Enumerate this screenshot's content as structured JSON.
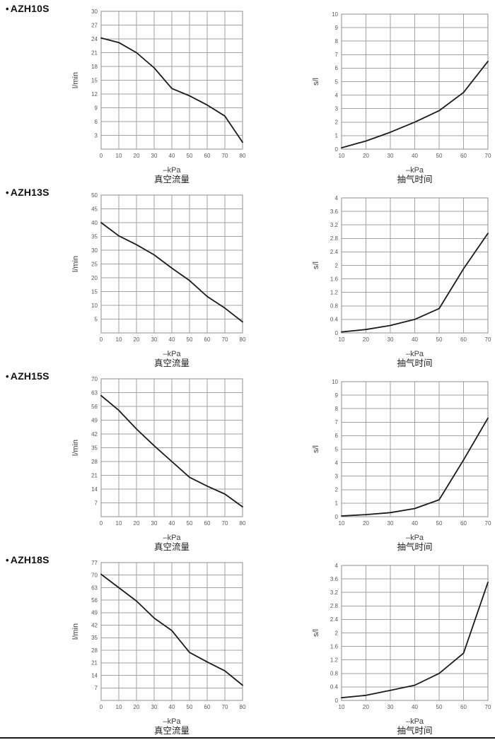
{
  "page": {
    "bullet": "•",
    "colors": {
      "grid": "#a3a3a3",
      "border": "#8f8f8f",
      "curve": "#1b1b1b",
      "tick_text": "#58595b",
      "unit_text": "#404040",
      "title_text": "#222222",
      "rule": "#151515"
    }
  },
  "chart_data": [
    {
      "id": "azh10s-flow",
      "product": "AZH10S",
      "panel": "flow",
      "type": "line",
      "title": "真空流量",
      "xlabel": "–kPa",
      "ylabel": "l/min",
      "xlim": [
        0,
        80
      ],
      "ylim": [
        0,
        30
      ],
      "grid": true,
      "legend": "none",
      "xticks": [
        0,
        10,
        20,
        30,
        40,
        50,
        60,
        70,
        80
      ],
      "yticks": [
        3,
        6,
        9,
        12,
        15,
        18,
        21,
        24,
        27,
        30
      ],
      "points": [
        [
          0,
          24.2
        ],
        [
          10,
          23.2
        ],
        [
          20,
          21
        ],
        [
          30,
          17.7
        ],
        [
          40,
          13.2
        ],
        [
          50,
          11.6
        ],
        [
          60,
          9.6
        ],
        [
          70,
          7.2
        ],
        [
          80,
          1.5
        ]
      ]
    },
    {
      "id": "azh10s-time",
      "product": "AZH10S",
      "panel": "time",
      "type": "line",
      "title": "抽气时间",
      "xlabel": "–kPa",
      "ylabel": "s/l",
      "xlim": [
        10,
        70
      ],
      "ylim": [
        0,
        10
      ],
      "grid": true,
      "legend": "none",
      "xticks": [
        10,
        20,
        30,
        40,
        50,
        60,
        70
      ],
      "yticks": [
        0,
        1,
        2,
        3,
        4,
        5,
        6,
        7,
        8,
        9,
        10
      ],
      "points": [
        [
          10,
          0.1
        ],
        [
          20,
          0.6
        ],
        [
          30,
          1.25
        ],
        [
          40,
          2.0
        ],
        [
          50,
          2.85
        ],
        [
          60,
          4.2
        ],
        [
          70,
          6.5
        ]
      ]
    },
    {
      "id": "azh13s-flow",
      "product": "AZH13S",
      "panel": "flow",
      "type": "line",
      "title": "真空流量",
      "xlabel": "–kPa",
      "ylabel": "l/min",
      "xlim": [
        0,
        80
      ],
      "ylim": [
        0,
        50
      ],
      "grid": true,
      "legend": "none",
      "xticks": [
        0,
        10,
        20,
        30,
        40,
        50,
        60,
        70,
        80
      ],
      "yticks": [
        5,
        10,
        15,
        20,
        25,
        30,
        35,
        40,
        45,
        50
      ],
      "points": [
        [
          0,
          40
        ],
        [
          10,
          35.2
        ],
        [
          20,
          32
        ],
        [
          30,
          28.3
        ],
        [
          40,
          23.5
        ],
        [
          50,
          19
        ],
        [
          60,
          13.2
        ],
        [
          70,
          9
        ],
        [
          80,
          4
        ]
      ]
    },
    {
      "id": "azh13s-time",
      "product": "AZH13S",
      "panel": "time",
      "type": "line",
      "title": "抽气时间",
      "xlabel": "–kPa",
      "ylabel": "s/l",
      "xlim": [
        10,
        70
      ],
      "ylim": [
        0,
        4
      ],
      "grid": true,
      "legend": "none",
      "xticks": [
        10,
        20,
        30,
        40,
        50,
        60,
        70
      ],
      "yticks": [
        0,
        0.4,
        0.8,
        1.2,
        1.6,
        2,
        2.4,
        2.8,
        3.2,
        3.6,
        4
      ],
      "points": [
        [
          10,
          0.03
        ],
        [
          20,
          0.1
        ],
        [
          30,
          0.22
        ],
        [
          40,
          0.4
        ],
        [
          50,
          0.72
        ],
        [
          60,
          1.9
        ],
        [
          70,
          2.95
        ]
      ]
    },
    {
      "id": "azh15s-flow",
      "product": "AZH15S",
      "panel": "flow",
      "type": "line",
      "title": "真空流量",
      "xlabel": "–kPa",
      "ylabel": "l/min",
      "xlim": [
        0,
        80
      ],
      "ylim": [
        0,
        70
      ],
      "grid": true,
      "legend": "none",
      "xticks": [
        0,
        10,
        20,
        30,
        40,
        50,
        60,
        70,
        80
      ],
      "yticks": [
        7,
        14,
        21,
        28,
        35,
        42,
        49,
        56,
        63,
        70
      ],
      "points": [
        [
          0,
          61.5
        ],
        [
          10,
          54
        ],
        [
          20,
          44.5
        ],
        [
          30,
          36
        ],
        [
          40,
          28
        ],
        [
          50,
          20
        ],
        [
          60,
          15.5
        ],
        [
          70,
          11.5
        ],
        [
          80,
          5
        ]
      ]
    },
    {
      "id": "azh15s-time",
      "product": "AZH15S",
      "panel": "time",
      "type": "line",
      "title": "抽气时间",
      "xlabel": "–kPa",
      "ylabel": "s/l",
      "xlim": [
        10,
        70
      ],
      "ylim": [
        0,
        10
      ],
      "grid": true,
      "legend": "none",
      "xticks": [
        10,
        20,
        30,
        40,
        50,
        60,
        70
      ],
      "yticks": [
        0,
        1,
        2,
        3,
        4,
        5,
        6,
        7,
        8,
        9,
        10
      ],
      "points": [
        [
          10,
          0.05
        ],
        [
          20,
          0.15
        ],
        [
          30,
          0.3
        ],
        [
          40,
          0.6
        ],
        [
          50,
          1.25
        ],
        [
          60,
          4.2
        ],
        [
          70,
          7.3
        ]
      ]
    },
    {
      "id": "azh18s-flow",
      "product": "AZH18S",
      "panel": "flow",
      "type": "line",
      "title": "真空流量",
      "xlabel": "–kPa",
      "ylabel": "l/min",
      "xlim": [
        0,
        80
      ],
      "ylim": [
        0,
        77
      ],
      "grid": true,
      "legend": "none",
      "xticks": [
        0,
        10,
        20,
        30,
        40,
        50,
        60,
        70,
        80
      ],
      "yticks": [
        7,
        14,
        21,
        28,
        35,
        42,
        49,
        56,
        63,
        70,
        77
      ],
      "points": [
        [
          0,
          70.5
        ],
        [
          10,
          63
        ],
        [
          20,
          55.5
        ],
        [
          30,
          46
        ],
        [
          40,
          39
        ],
        [
          50,
          26.8
        ],
        [
          60,
          21.5
        ],
        [
          70,
          16.5
        ],
        [
          80,
          8.5
        ]
      ]
    },
    {
      "id": "azh18s-time",
      "product": "AZH18S",
      "panel": "time",
      "type": "line",
      "title": "抽气时间",
      "xlabel": "–kPa",
      "ylabel": "s/l",
      "xlim": [
        10,
        70
      ],
      "ylim": [
        0,
        4
      ],
      "grid": true,
      "legend": "none",
      "xticks": [
        10,
        20,
        30,
        40,
        50,
        60,
        70
      ],
      "yticks": [
        0,
        0.4,
        0.8,
        1.2,
        1.6,
        2,
        2.4,
        2.8,
        3.2,
        3.6,
        4
      ],
      "points": [
        [
          10,
          0.08
        ],
        [
          20,
          0.15
        ],
        [
          30,
          0.3
        ],
        [
          40,
          0.45
        ],
        [
          50,
          0.8
        ],
        [
          60,
          1.4
        ],
        [
          70,
          3.5
        ]
      ]
    }
  ]
}
